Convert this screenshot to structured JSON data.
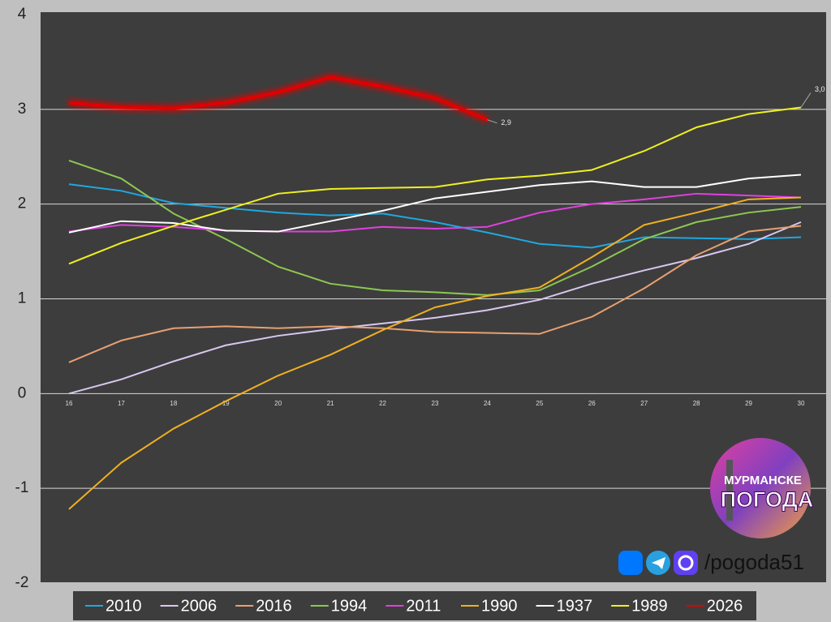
{
  "chart_data": {
    "type": "line",
    "x": [
      16,
      17,
      18,
      19,
      20,
      21,
      22,
      23,
      24,
      25,
      26,
      27,
      28,
      29,
      30
    ],
    "xlim": [
      16,
      30
    ],
    "xticks": [
      16,
      17,
      18,
      19,
      20,
      21,
      22,
      23,
      24,
      25,
      26,
      27,
      28,
      29,
      30
    ],
    "ylim": [
      -2,
      4
    ],
    "yticks": [
      -2,
      -1,
      0,
      1,
      2,
      3,
      4
    ],
    "grid": true,
    "legend": "bottom",
    "series": [
      {
        "name": "2010",
        "color": "#1fa8e0",
        "values": [
          2.21,
          2.14,
          2.01,
          1.96,
          1.91,
          1.88,
          1.9,
          1.81,
          1.7,
          1.58,
          1.54,
          1.65,
          1.64,
          1.63,
          1.65
        ]
      },
      {
        "name": "2006",
        "color": "#d8c8f0",
        "values": [
          0,
          0.15,
          0.34,
          0.51,
          0.61,
          0.68,
          0.74,
          0.8,
          0.88,
          0.99,
          1.16,
          1.3,
          1.43,
          1.58,
          1.81
        ]
      },
      {
        "name": "2016",
        "color": "#e8a070",
        "values": [
          0.33,
          0.56,
          0.69,
          0.71,
          0.69,
          0.71,
          0.69,
          0.65,
          0.64,
          0.63,
          0.81,
          1.11,
          1.46,
          1.71,
          1.77
        ]
      },
      {
        "name": "1994",
        "color": "#8cc850",
        "values": [
          2.46,
          2.27,
          1.9,
          1.63,
          1.34,
          1.16,
          1.09,
          1.07,
          1.04,
          1.09,
          1.34,
          1.63,
          1.81,
          1.91,
          1.97
        ]
      },
      {
        "name": "2011",
        "color": "#e040e0",
        "values": [
          1.71,
          1.78,
          1.76,
          1.72,
          1.71,
          1.71,
          1.76,
          1.74,
          1.76,
          1.91,
          2.0,
          2.05,
          2.11,
          2.09,
          2.07
        ]
      },
      {
        "name": "1990",
        "color": "#f0b020",
        "values": [
          -1.22,
          -0.73,
          -0.37,
          -0.08,
          0.19,
          0.41,
          0.67,
          0.91,
          1.03,
          1.12,
          1.44,
          1.78,
          1.91,
          2.05,
          2.07
        ]
      },
      {
        "name": "1937",
        "color": "#ffffff",
        "values": [
          1.7,
          1.82,
          1.8,
          1.72,
          1.71,
          1.82,
          1.93,
          2.06,
          2.13,
          2.2,
          2.24,
          2.18,
          2.18,
          2.27,
          2.31
        ]
      },
      {
        "name": "1989",
        "color": "#f0f020",
        "values": [
          1.37,
          1.59,
          1.77,
          1.94,
          2.11,
          2.16,
          2.17,
          2.18,
          2.26,
          2.3,
          2.36,
          2.56,
          2.81,
          2.95,
          3.02
        ],
        "value_labels": [
          null,
          null,
          null,
          null,
          null,
          null,
          null,
          null,
          null,
          null,
          null,
          null,
          null,
          null,
          "3,0"
        ]
      },
      {
        "name": "2026",
        "color": "#e00000",
        "values": [
          3.07,
          3.02,
          3.01,
          3.07,
          3.18,
          3.34,
          3.24,
          3.12,
          2.89,
          null,
          null,
          null,
          null,
          null,
          null
        ],
        "value_labels": [
          null,
          null,
          null,
          null,
          null,
          null,
          null,
          null,
          "2,9",
          null,
          null,
          null,
          null,
          null,
          null
        ]
      }
    ],
    "annotations": [
      "МУРМАНСКЕ",
      "ПОГОДА",
      "/pogoda51"
    ]
  }
}
